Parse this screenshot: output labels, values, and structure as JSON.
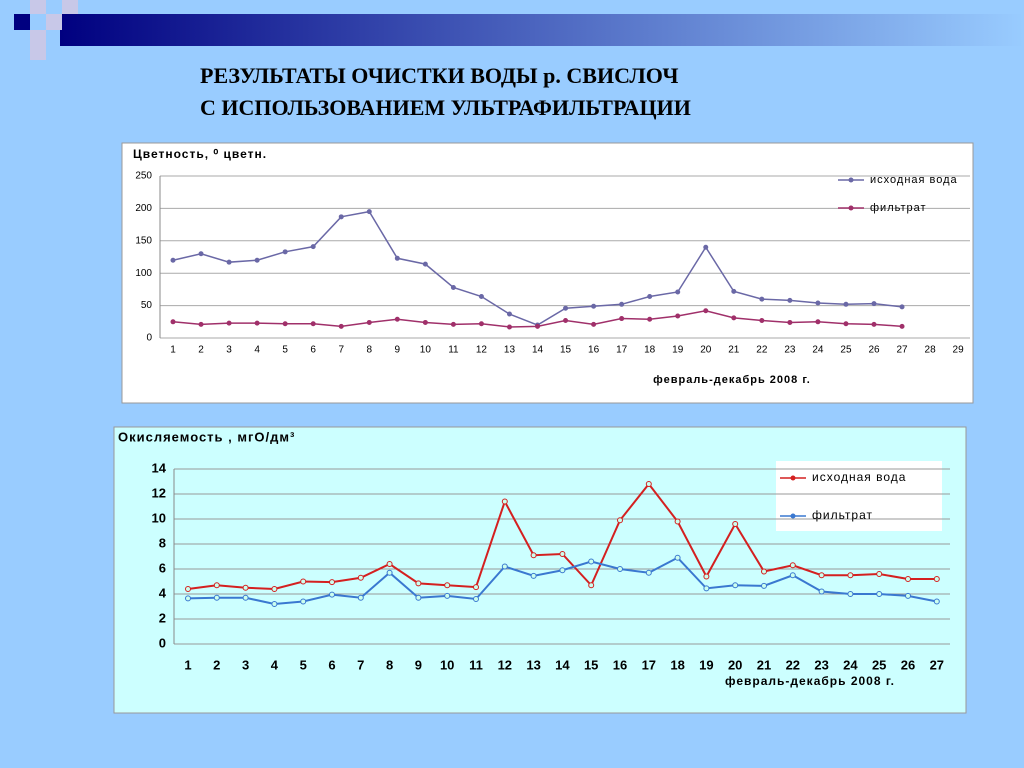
{
  "title_line1": "РЕЗУЛЬТАТЫ ОЧИСТКИ ВОДЫ р. СВИСЛОЧ",
  "title_line2": "С ИСПОЛЬЗОВАНИЕМ УЛЬТРАФИЛЬТРАЦИИ",
  "chart_data": [
    {
      "type": "line",
      "ylabel": "Цветность, ⁰ цветн.",
      "xlabel": "февраль-декабрь 2008 г.",
      "categories": [
        "1",
        "2",
        "3",
        "4",
        "5",
        "6",
        "7",
        "8",
        "9",
        "10",
        "11",
        "12",
        "13",
        "14",
        "15",
        "16",
        "17",
        "18",
        "19",
        "20",
        "21",
        "22",
        "23",
        "24",
        "25",
        "26",
        "27",
        "28",
        "29"
      ],
      "ylim": [
        0,
        250
      ],
      "yticks": [
        0,
        50,
        100,
        150,
        200,
        250
      ],
      "grid": true,
      "legend": "top-right",
      "series": [
        {
          "name": "исходная вода",
          "color": "#6a68a6",
          "values": [
            120,
            130,
            117,
            120,
            133,
            141,
            187,
            195,
            123,
            114,
            78,
            64,
            37,
            20,
            46,
            49,
            52,
            64,
            71,
            140,
            72,
            60,
            58,
            54,
            52,
            53,
            48,
            null,
            null
          ]
        },
        {
          "name": "фильтрат",
          "color": "#a0306a",
          "values": [
            25,
            21,
            23,
            23,
            22,
            22,
            18,
            24,
            29,
            24,
            21,
            22,
            17,
            18,
            27,
            21,
            30,
            29,
            34,
            42,
            31,
            27,
            24,
            25,
            22,
            21,
            18,
            null,
            null
          ]
        }
      ]
    },
    {
      "type": "line",
      "ylabel": "Окисляемость , мгО/дм³",
      "xlabel": "февраль-декабрь 2008 г.",
      "categories": [
        "1",
        "2",
        "3",
        "4",
        "5",
        "6",
        "7",
        "8",
        "9",
        "10",
        "11",
        "12",
        "13",
        "14",
        "15",
        "16",
        "17",
        "18",
        "19",
        "20",
        "21",
        "22",
        "23",
        "24",
        "25",
        "26",
        "27"
      ],
      "ylim": [
        0,
        14
      ],
      "yticks": [
        0,
        2,
        4,
        6,
        8,
        10,
        12,
        14
      ],
      "grid": true,
      "legend": "top-right",
      "series": [
        {
          "name": "исходная вода",
          "color": "#d42020",
          "values": [
            4.4,
            4.7,
            4.5,
            4.4,
            5.0,
            4.95,
            5.3,
            6.4,
            4.85,
            4.7,
            4.55,
            11.4,
            7.1,
            7.2,
            4.7,
            9.9,
            12.8,
            9.8,
            5.4,
            9.6,
            5.8,
            6.3,
            5.5,
            5.5,
            5.6,
            5.2,
            5.2
          ]
        },
        {
          "name": "фильтрат",
          "color": "#3a78d0",
          "values": [
            3.65,
            3.7,
            3.7,
            3.2,
            3.4,
            3.95,
            3.7,
            5.7,
            3.7,
            3.85,
            3.6,
            6.2,
            5.45,
            5.9,
            6.6,
            6.0,
            5.7,
            6.9,
            4.45,
            4.7,
            4.65,
            5.5,
            4.2,
            4.0,
            4.0,
            3.85,
            3.4
          ]
        }
      ]
    }
  ]
}
